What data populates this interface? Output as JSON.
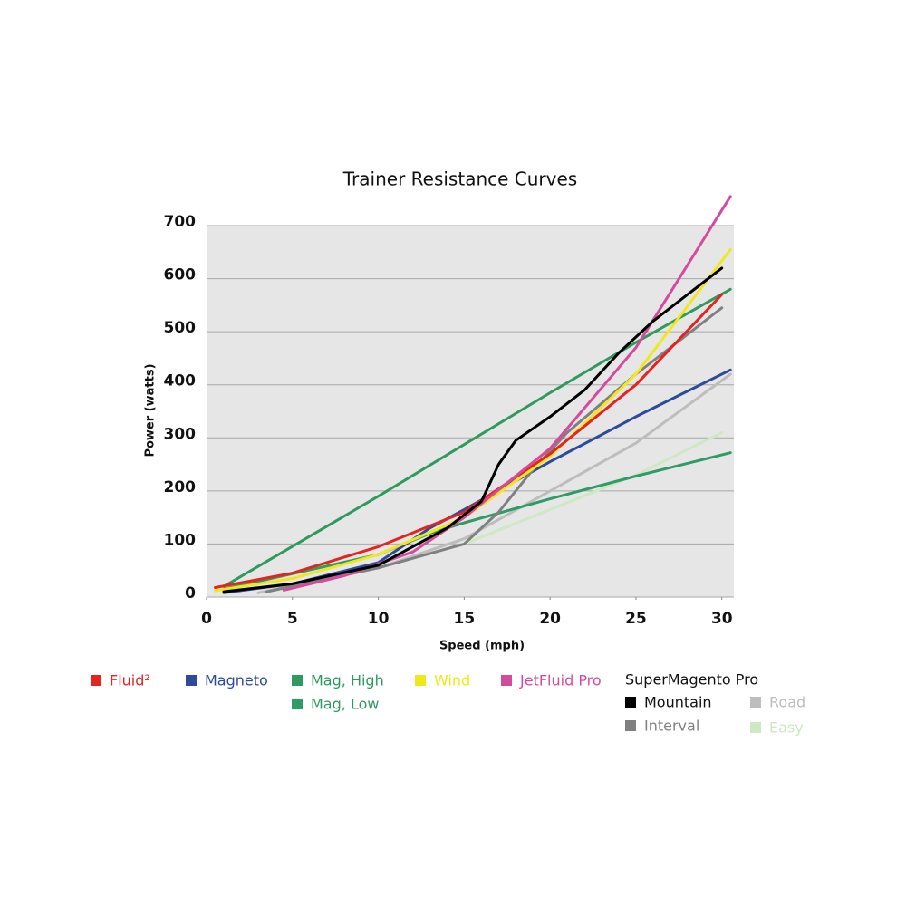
{
  "chart_data": {
    "type": "line",
    "title": "Trainer Resistance Curves",
    "xlabel": "Speed (mph)",
    "ylabel": "Power (watts)",
    "xlim": [
      0,
      30.7
    ],
    "xticks": [
      0,
      5,
      10,
      15,
      20,
      25,
      30
    ],
    "ylim": [
      0,
      700
    ],
    "yticks": [
      0,
      100,
      200,
      300,
      400,
      500,
      600,
      700
    ],
    "grid": true,
    "legend_group": "SuperMagento Pro",
    "series": [
      {
        "name": "Easy",
        "color": "#cde8c3",
        "x": [
          3,
          10,
          15,
          20,
          25,
          30
        ],
        "values": [
          8,
          55,
          100,
          165,
          230,
          310
        ]
      },
      {
        "name": "Road",
        "color": "#bdbdbd",
        "x": [
          3,
          10,
          15,
          20,
          25,
          30.5
        ],
        "values": [
          8,
          55,
          110,
          200,
          290,
          420
        ]
      },
      {
        "name": "Mag, Low",
        "color": "#2f9b66",
        "x": [
          1,
          10,
          13,
          15,
          20,
          25,
          30.5
        ],
        "values": [
          15,
          80,
          120,
          140,
          185,
          228,
          272
        ]
      },
      {
        "name": "Mag, High",
        "color": "#2e9a5e",
        "x": [
          1,
          10,
          20,
          25,
          30.5
        ],
        "values": [
          20,
          190,
          385,
          480,
          580
        ]
      },
      {
        "name": "Magneto",
        "color": "#2e4b9b",
        "x": [
          1,
          5,
          10,
          13,
          15,
          20,
          25,
          30.5
        ],
        "values": [
          8,
          25,
          65,
          130,
          165,
          255,
          340,
          428
        ]
      },
      {
        "name": "Interval",
        "color": "#808080",
        "x": [
          3.5,
          10,
          15,
          17,
          19,
          21,
          25,
          30
        ],
        "values": [
          10,
          55,
          100,
          160,
          240,
          310,
          420,
          545
        ]
      },
      {
        "name": "Wind",
        "color": "#f0e81a",
        "x": [
          0.5,
          5,
          10,
          15,
          20,
          25,
          30.5
        ],
        "values": [
          12,
          35,
          80,
          150,
          265,
          420,
          655
        ]
      },
      {
        "name": "Fluid²",
        "color": "#e52421",
        "x": [
          0.5,
          5,
          10,
          15,
          20,
          25,
          30
        ],
        "values": [
          18,
          45,
          95,
          160,
          270,
          400,
          570
        ]
      },
      {
        "name": "JetFluid Pro",
        "color": "#d54b9b",
        "x": [
          4.5,
          8,
          12,
          15,
          20,
          25,
          30.5
        ],
        "values": [
          13,
          40,
          85,
          150,
          280,
          470,
          755
        ]
      },
      {
        "name": "Mountain",
        "color": "#000000",
        "x": [
          1,
          5,
          10,
          14,
          16,
          17,
          18,
          20,
          22,
          24,
          26,
          30
        ],
        "values": [
          10,
          25,
          60,
          130,
          180,
          250,
          295,
          340,
          390,
          460,
          520,
          620
        ]
      }
    ]
  }
}
